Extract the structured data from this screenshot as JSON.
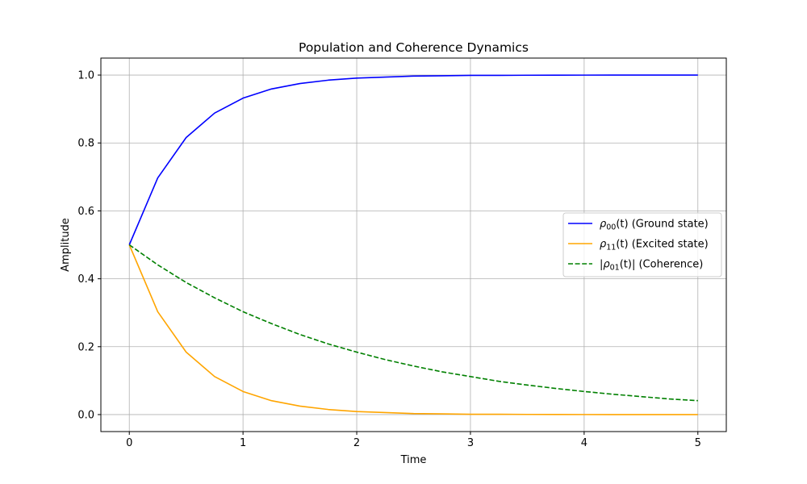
{
  "chart_data": {
    "type": "line",
    "title": "Population and Coherence Dynamics",
    "xlabel": "Time",
    "ylabel": "Amplitude",
    "xlim": [
      -0.25,
      5.25
    ],
    "ylim": [
      -0.05,
      1.05
    ],
    "xticks": [
      0,
      1,
      2,
      3,
      4,
      5
    ],
    "xtick_labels": [
      "0",
      "1",
      "2",
      "3",
      "4",
      "5"
    ],
    "yticks": [
      0.0,
      0.2,
      0.4,
      0.6,
      0.8,
      1.0
    ],
    "ytick_labels": [
      "0.0",
      "0.2",
      "0.4",
      "0.6",
      "0.8",
      "1.0"
    ],
    "grid": true,
    "legend_position": "center-right",
    "x": [
      0,
      0.25,
      0.5,
      0.75,
      1,
      1.25,
      1.5,
      1.75,
      2,
      2.25,
      2.5,
      2.75,
      3,
      3.25,
      3.5,
      3.75,
      4,
      4.25,
      4.5,
      4.75,
      5
    ],
    "series": [
      {
        "name": "ρ00(t) (Ground state)",
        "legend_main": "ρ",
        "legend_sub": "00",
        "legend_rest": "(t) (Ground state)",
        "color": "#0000ff",
        "dash": "solid",
        "values": [
          0.5,
          0.697,
          0.816,
          0.888,
          0.932,
          0.959,
          0.975,
          0.985,
          0.991,
          0.994,
          0.997,
          0.998,
          0.999,
          0.999,
          0.9995,
          0.9997,
          0.9998,
          0.9999,
          0.9999,
          0.99995,
          0.99997
        ]
      },
      {
        "name": "ρ11(t) (Excited state)",
        "legend_main": "ρ",
        "legend_sub": "11",
        "legend_rest": "(t) (Excited state)",
        "color": "#ffa500",
        "dash": "solid",
        "values": [
          0.5,
          0.303,
          0.184,
          0.112,
          0.068,
          0.041,
          0.025,
          0.015,
          0.009,
          0.006,
          0.003,
          0.002,
          0.001,
          0.001,
          0.0005,
          0.0003,
          0.0002,
          0.0001,
          0.0001,
          5e-05,
          3e-05
        ]
      },
      {
        "name": "|ρ01(t)| (Coherence)",
        "legend_main": "|ρ",
        "legend_sub": "01",
        "legend_rest": "(t)| (Coherence)",
        "color": "#008000",
        "dash": "dashed",
        "values": [
          0.5,
          0.441,
          0.389,
          0.344,
          0.303,
          0.268,
          0.236,
          0.208,
          0.184,
          0.162,
          0.143,
          0.126,
          0.112,
          0.098,
          0.087,
          0.077,
          0.068,
          0.06,
          0.053,
          0.046,
          0.041
        ]
      }
    ]
  }
}
